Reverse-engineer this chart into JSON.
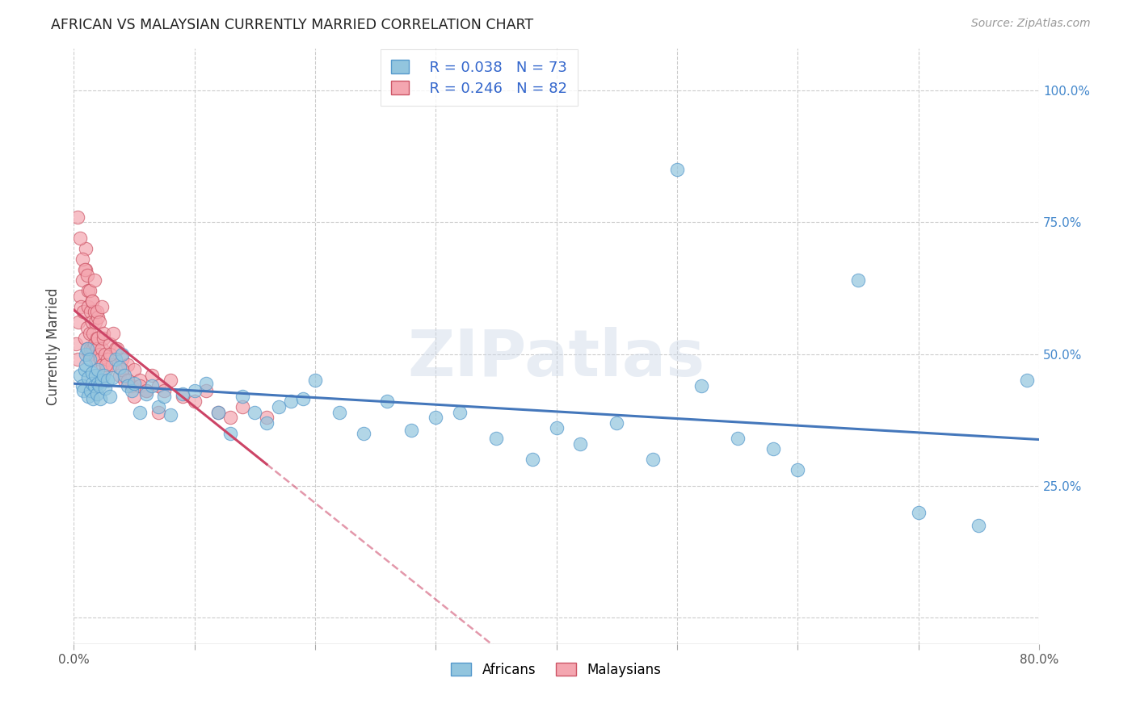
{
  "title": "AFRICAN VS MALAYSIAN CURRENTLY MARRIED CORRELATION CHART",
  "source": "Source: ZipAtlas.com",
  "ylabel": "Currently Married",
  "ytick_vals": [
    0.0,
    0.25,
    0.5,
    0.75,
    1.0
  ],
  "ytick_labels": [
    "",
    "25.0%",
    "50.0%",
    "75.0%",
    "100.0%"
  ],
  "xlim": [
    0.0,
    0.8
  ],
  "ylim": [
    -0.05,
    1.08
  ],
  "blue_color": "#92c5de",
  "pink_color": "#f4a6b0",
  "blue_edge": "#5599cc",
  "pink_edge": "#cc5566",
  "blue_line": "#4477bb",
  "pink_line": "#cc4466",
  "watermark": "ZIPatlas",
  "africans_x": [
    0.005,
    0.007,
    0.008,
    0.009,
    0.01,
    0.01,
    0.011,
    0.012,
    0.012,
    0.013,
    0.014,
    0.015,
    0.015,
    0.016,
    0.017,
    0.018,
    0.019,
    0.02,
    0.02,
    0.021,
    0.022,
    0.023,
    0.025,
    0.026,
    0.028,
    0.03,
    0.032,
    0.035,
    0.038,
    0.04,
    0.042,
    0.045,
    0.048,
    0.05,
    0.055,
    0.06,
    0.065,
    0.07,
    0.075,
    0.08,
    0.09,
    0.1,
    0.11,
    0.12,
    0.13,
    0.14,
    0.15,
    0.16,
    0.17,
    0.18,
    0.19,
    0.2,
    0.22,
    0.24,
    0.26,
    0.28,
    0.3,
    0.32,
    0.35,
    0.38,
    0.4,
    0.42,
    0.45,
    0.48,
    0.5,
    0.52,
    0.55,
    0.58,
    0.6,
    0.65,
    0.7,
    0.75,
    0.79
  ],
  "africans_y": [
    0.46,
    0.44,
    0.43,
    0.47,
    0.48,
    0.5,
    0.51,
    0.455,
    0.42,
    0.49,
    0.43,
    0.465,
    0.445,
    0.415,
    0.44,
    0.46,
    0.425,
    0.47,
    0.445,
    0.44,
    0.415,
    0.45,
    0.46,
    0.435,
    0.45,
    0.42,
    0.455,
    0.49,
    0.475,
    0.5,
    0.46,
    0.44,
    0.43,
    0.445,
    0.39,
    0.425,
    0.44,
    0.4,
    0.42,
    0.385,
    0.425,
    0.43,
    0.445,
    0.39,
    0.35,
    0.42,
    0.39,
    0.37,
    0.4,
    0.41,
    0.415,
    0.45,
    0.39,
    0.35,
    0.41,
    0.355,
    0.38,
    0.39,
    0.34,
    0.3,
    0.36,
    0.33,
    0.37,
    0.3,
    0.85,
    0.44,
    0.34,
    0.32,
    0.28,
    0.64,
    0.2,
    0.175,
    0.45
  ],
  "malaysians_x": [
    0.002,
    0.003,
    0.004,
    0.005,
    0.006,
    0.007,
    0.008,
    0.009,
    0.01,
    0.01,
    0.011,
    0.011,
    0.012,
    0.012,
    0.013,
    0.013,
    0.014,
    0.014,
    0.015,
    0.015,
    0.016,
    0.016,
    0.017,
    0.017,
    0.018,
    0.018,
    0.019,
    0.019,
    0.02,
    0.02,
    0.021,
    0.022,
    0.023,
    0.024,
    0.025,
    0.026,
    0.027,
    0.028,
    0.03,
    0.032,
    0.035,
    0.038,
    0.04,
    0.042,
    0.045,
    0.048,
    0.05,
    0.055,
    0.06,
    0.065,
    0.07,
    0.075,
    0.08,
    0.09,
    0.1,
    0.11,
    0.12,
    0.13,
    0.14,
    0.16,
    0.003,
    0.005,
    0.007,
    0.009,
    0.011,
    0.013,
    0.015,
    0.017,
    0.019,
    0.021,
    0.023,
    0.025,
    0.027,
    0.03,
    0.033,
    0.036,
    0.04,
    0.045,
    0.05,
    0.055,
    0.06,
    0.07
  ],
  "malaysians_y": [
    0.52,
    0.49,
    0.56,
    0.61,
    0.59,
    0.64,
    0.58,
    0.53,
    0.7,
    0.66,
    0.51,
    0.55,
    0.59,
    0.62,
    0.5,
    0.54,
    0.58,
    0.51,
    0.6,
    0.56,
    0.54,
    0.51,
    0.58,
    0.52,
    0.56,
    0.49,
    0.53,
    0.51,
    0.57,
    0.53,
    0.5,
    0.49,
    0.51,
    0.48,
    0.53,
    0.5,
    0.47,
    0.49,
    0.52,
    0.48,
    0.51,
    0.46,
    0.49,
    0.45,
    0.48,
    0.44,
    0.47,
    0.45,
    0.43,
    0.46,
    0.44,
    0.43,
    0.45,
    0.42,
    0.41,
    0.43,
    0.39,
    0.38,
    0.4,
    0.38,
    0.76,
    0.72,
    0.68,
    0.66,
    0.65,
    0.62,
    0.6,
    0.64,
    0.58,
    0.56,
    0.59,
    0.54,
    0.48,
    0.5,
    0.54,
    0.51,
    0.47,
    0.45,
    0.42,
    0.44,
    0.43,
    0.39
  ]
}
